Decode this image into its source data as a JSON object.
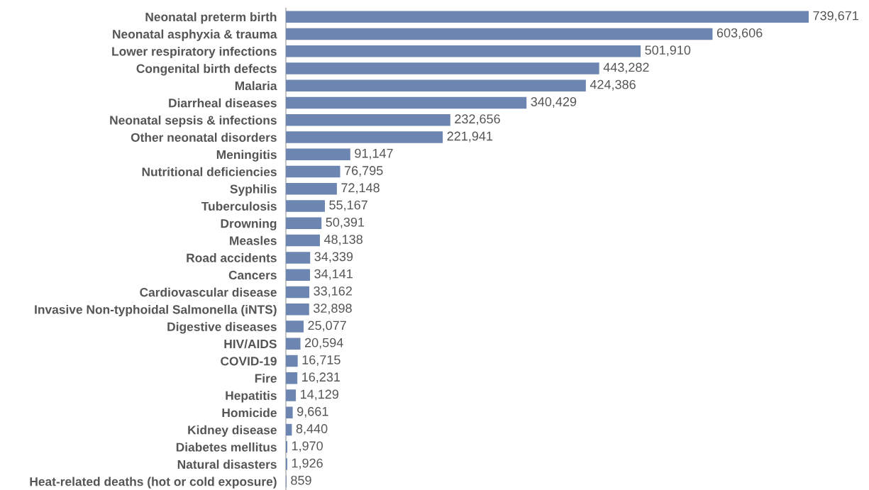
{
  "chart_data": {
    "type": "bar",
    "orientation": "horizontal",
    "grid": false,
    "legend": false,
    "categories": [
      "Neonatal preterm birth",
      "Neonatal asphyxia & trauma",
      "Lower respiratory infections",
      "Congenital birth defects",
      "Malaria",
      "Diarrheal diseases",
      "Neonatal sepsis & infections",
      "Other neonatal disorders",
      "Meningitis",
      "Nutritional deficiencies",
      "Syphilis",
      "Tuberculosis",
      "Drowning",
      "Measles",
      "Road accidents",
      "Cancers",
      "Cardiovascular disease",
      "Invasive Non-typhoidal Salmonella (iNTS)",
      "Digestive diseases",
      "HIV/AIDS",
      "COVID-19",
      "Fire",
      "Hepatitis",
      "Homicide",
      "Kidney disease",
      "Diabetes mellitus",
      "Natural disasters",
      "Heat-related deaths (hot or cold exposure)"
    ],
    "series": [
      {
        "color": "#6d86b1",
        "values": [
          739671,
          603606,
          501910,
          443282,
          424386,
          340429,
          232656,
          221941,
          91147,
          76795,
          72148,
          55167,
          50391,
          48138,
          34339,
          34141,
          33162,
          32898,
          25077,
          20594,
          16715,
          16231,
          14129,
          9661,
          8440,
          1970,
          1926,
          859
        ],
        "value_labels": [
          "739,671",
          "603,606",
          "501,910",
          "443,282",
          "424,386",
          "340,429",
          "232,656",
          "221,941",
          "91,147",
          "76,795",
          "72,148",
          "55,167",
          "50,391",
          "48,138",
          "34,339",
          "34,141",
          "33,162",
          "32,898",
          "25,077",
          "20,594",
          "16,715",
          "16,231",
          "14,129",
          "9,661",
          "8,440",
          "1,970",
          "1,926",
          "859"
        ]
      }
    ]
  }
}
